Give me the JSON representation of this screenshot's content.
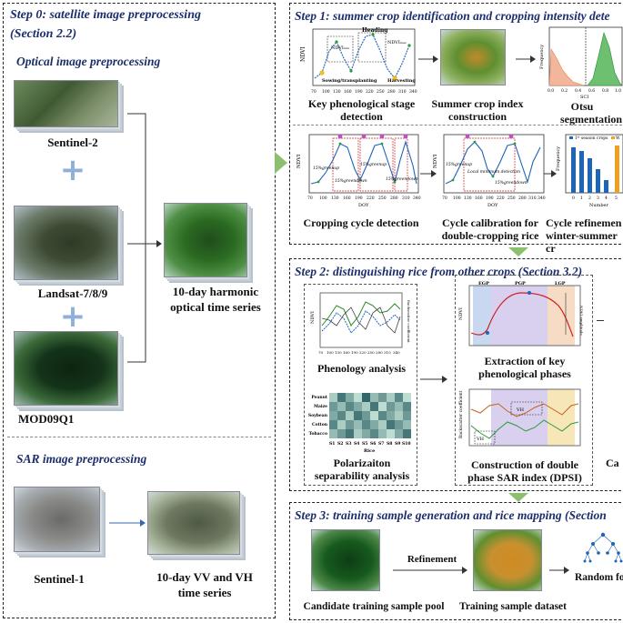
{
  "step0": {
    "title": "Step 0: satellite image preprocessing",
    "section": "(Section 2.2)",
    "optical_title": "Optical image preprocessing",
    "sentinel2": "Sentinel-2",
    "landsat": "Landsat-7/8/9",
    "modis": "MOD09Q1",
    "optical_output": [
      "10-day harmonic",
      "optical time series"
    ],
    "sar_title": "SAR image preprocessing",
    "sentinel1": "Sentinel-1",
    "sar_output": [
      "10-day VV and VH",
      "time series"
    ]
  },
  "step1": {
    "title": "Step 1: summer crop identification and cropping intensity dete",
    "key_pheno": [
      "Key phenological stage",
      "detection"
    ],
    "summer_index": [
      "Summer crop index",
      "construction"
    ],
    "otsu": [
      "Otsu",
      "segmentation"
    ],
    "crop_cycle": "Cropping cycle detection",
    "cycle_calib": [
      "Cycle calibration for",
      "double-cropping rice"
    ],
    "cycle_refine": [
      "Cycle refinemen",
      "winter-summer cr"
    ],
    "plot1": {
      "ylabel": "NDVI",
      "xticks": [
        "70",
        "100",
        "130",
        "160",
        "190",
        "220",
        "250",
        "280",
        "310",
        "340"
      ],
      "heading": "Heading",
      "ndvi_min": "NDVIₘᵢₙ",
      "ndvi_max": "NDVIₘₐₓ",
      "sowing": "Sowing/transplanting",
      "harvest": "Harvesting"
    },
    "plot2": {
      "xlabel": "SCI",
      "ylabel": "Frequency",
      "xticks": [
        "0.0",
        "0.2",
        "0.4",
        "0.6",
        "0.8",
        "1.0"
      ]
    },
    "plot3": {
      "ylabel": "NDVI",
      "xlabel": "DOY",
      "xticks": [
        "70",
        "100",
        "130",
        "160",
        "190",
        "220",
        "250",
        "280",
        "310",
        "340"
      ],
      "yticks": [
        "0.2",
        "0.4",
        "0.6",
        "0.8",
        "1.0"
      ],
      "g1": "15%greenup",
      "g2": "15%greenup",
      "d1": "15%greendown",
      "d2": "15%greendown"
    },
    "plot4": {
      "ylabel": "NDVI",
      "xlabel": "DOY",
      "xticks": [
        "70",
        "100",
        "130",
        "160",
        "190",
        "220",
        "250",
        "280",
        "310",
        "340"
      ],
      "g1": "15%greenup",
      "local": "Local minimum detection",
      "d1": "15%greendown"
    },
    "plot5": {
      "ylabel": "Frequency",
      "xlabel": "Number",
      "legend1": "1ˢᵗ season crops",
      "legend2": "W",
      "xticks": [
        "0",
        "1",
        "2",
        "3",
        "4",
        "5"
      ]
    }
  },
  "step2": {
    "title": "Step 2: distinguishing rice from other crops (Section 3.2)",
    "pheno_analysis": "Phenology analysis",
    "polar": [
      "Polarizaiton",
      "separability analysis"
    ],
    "extract": [
      "Extraction of key",
      "phenological phases"
    ],
    "dpsi": [
      "Construction of double",
      "phase SAR index (DPSI)"
    ],
    "cut_label": "Ca",
    "heat_rows": [
      "Peanut",
      "Maize",
      "Soybean",
      "Cotton",
      "Tobacco"
    ],
    "heat_cols": [
      "S1",
      "S2",
      "S3",
      "S4",
      "S5",
      "S6",
      "S7",
      "S8",
      "S9",
      "S10"
    ],
    "heat_xlabel": "Rice",
    "heatmap": [
      [
        0.3,
        0.8,
        0.5,
        0.2,
        0.9,
        0.4,
        0.6,
        0.3,
        0.7,
        0.2
      ],
      [
        0.6,
        0.4,
        0.7,
        0.5,
        0.3,
        0.8,
        0.2,
        0.6,
        0.4,
        0.7
      ],
      [
        0.5,
        0.7,
        0.3,
        0.8,
        0.6,
        0.2,
        0.7,
        0.5,
        0.3,
        0.6
      ],
      [
        0.7,
        0.3,
        0.6,
        0.4,
        0.7,
        0.5,
        0.3,
        0.8,
        0.6,
        0.4
      ],
      [
        0.4,
        0.6,
        0.8,
        0.3,
        0.5,
        0.7,
        0.4,
        0.2,
        0.5,
        0.8
      ]
    ],
    "pheno_plot": {
      "ylabel": "NDVI",
      "y2label": "Backscatter coefficient",
      "xticks": [
        "70",
        "100",
        "130",
        "160",
        "190",
        "220",
        "250",
        "280",
        "310",
        "340"
      ],
      "yticks": [
        "0.2",
        "0.4",
        "0.6",
        "0.8"
      ]
    },
    "extract_plot": {
      "egp": "EGP",
      "pgp": "PGP",
      "lgp": "LGP",
      "ylabel": "NDVI",
      "amp": "NDVI amplitude"
    },
    "dpsi_plot": {
      "ylabel": "Backscatter coefficient",
      "vhmin": "VH",
      "vhmax": "VH"
    }
  },
  "step3": {
    "title": "Step 3: training sample generation and rice mapping  (Section",
    "refinement": "Refinement",
    "pool": "Candidate training sample pool",
    "dataset": "Training sample dataset",
    "rf": "Random fo"
  }
}
